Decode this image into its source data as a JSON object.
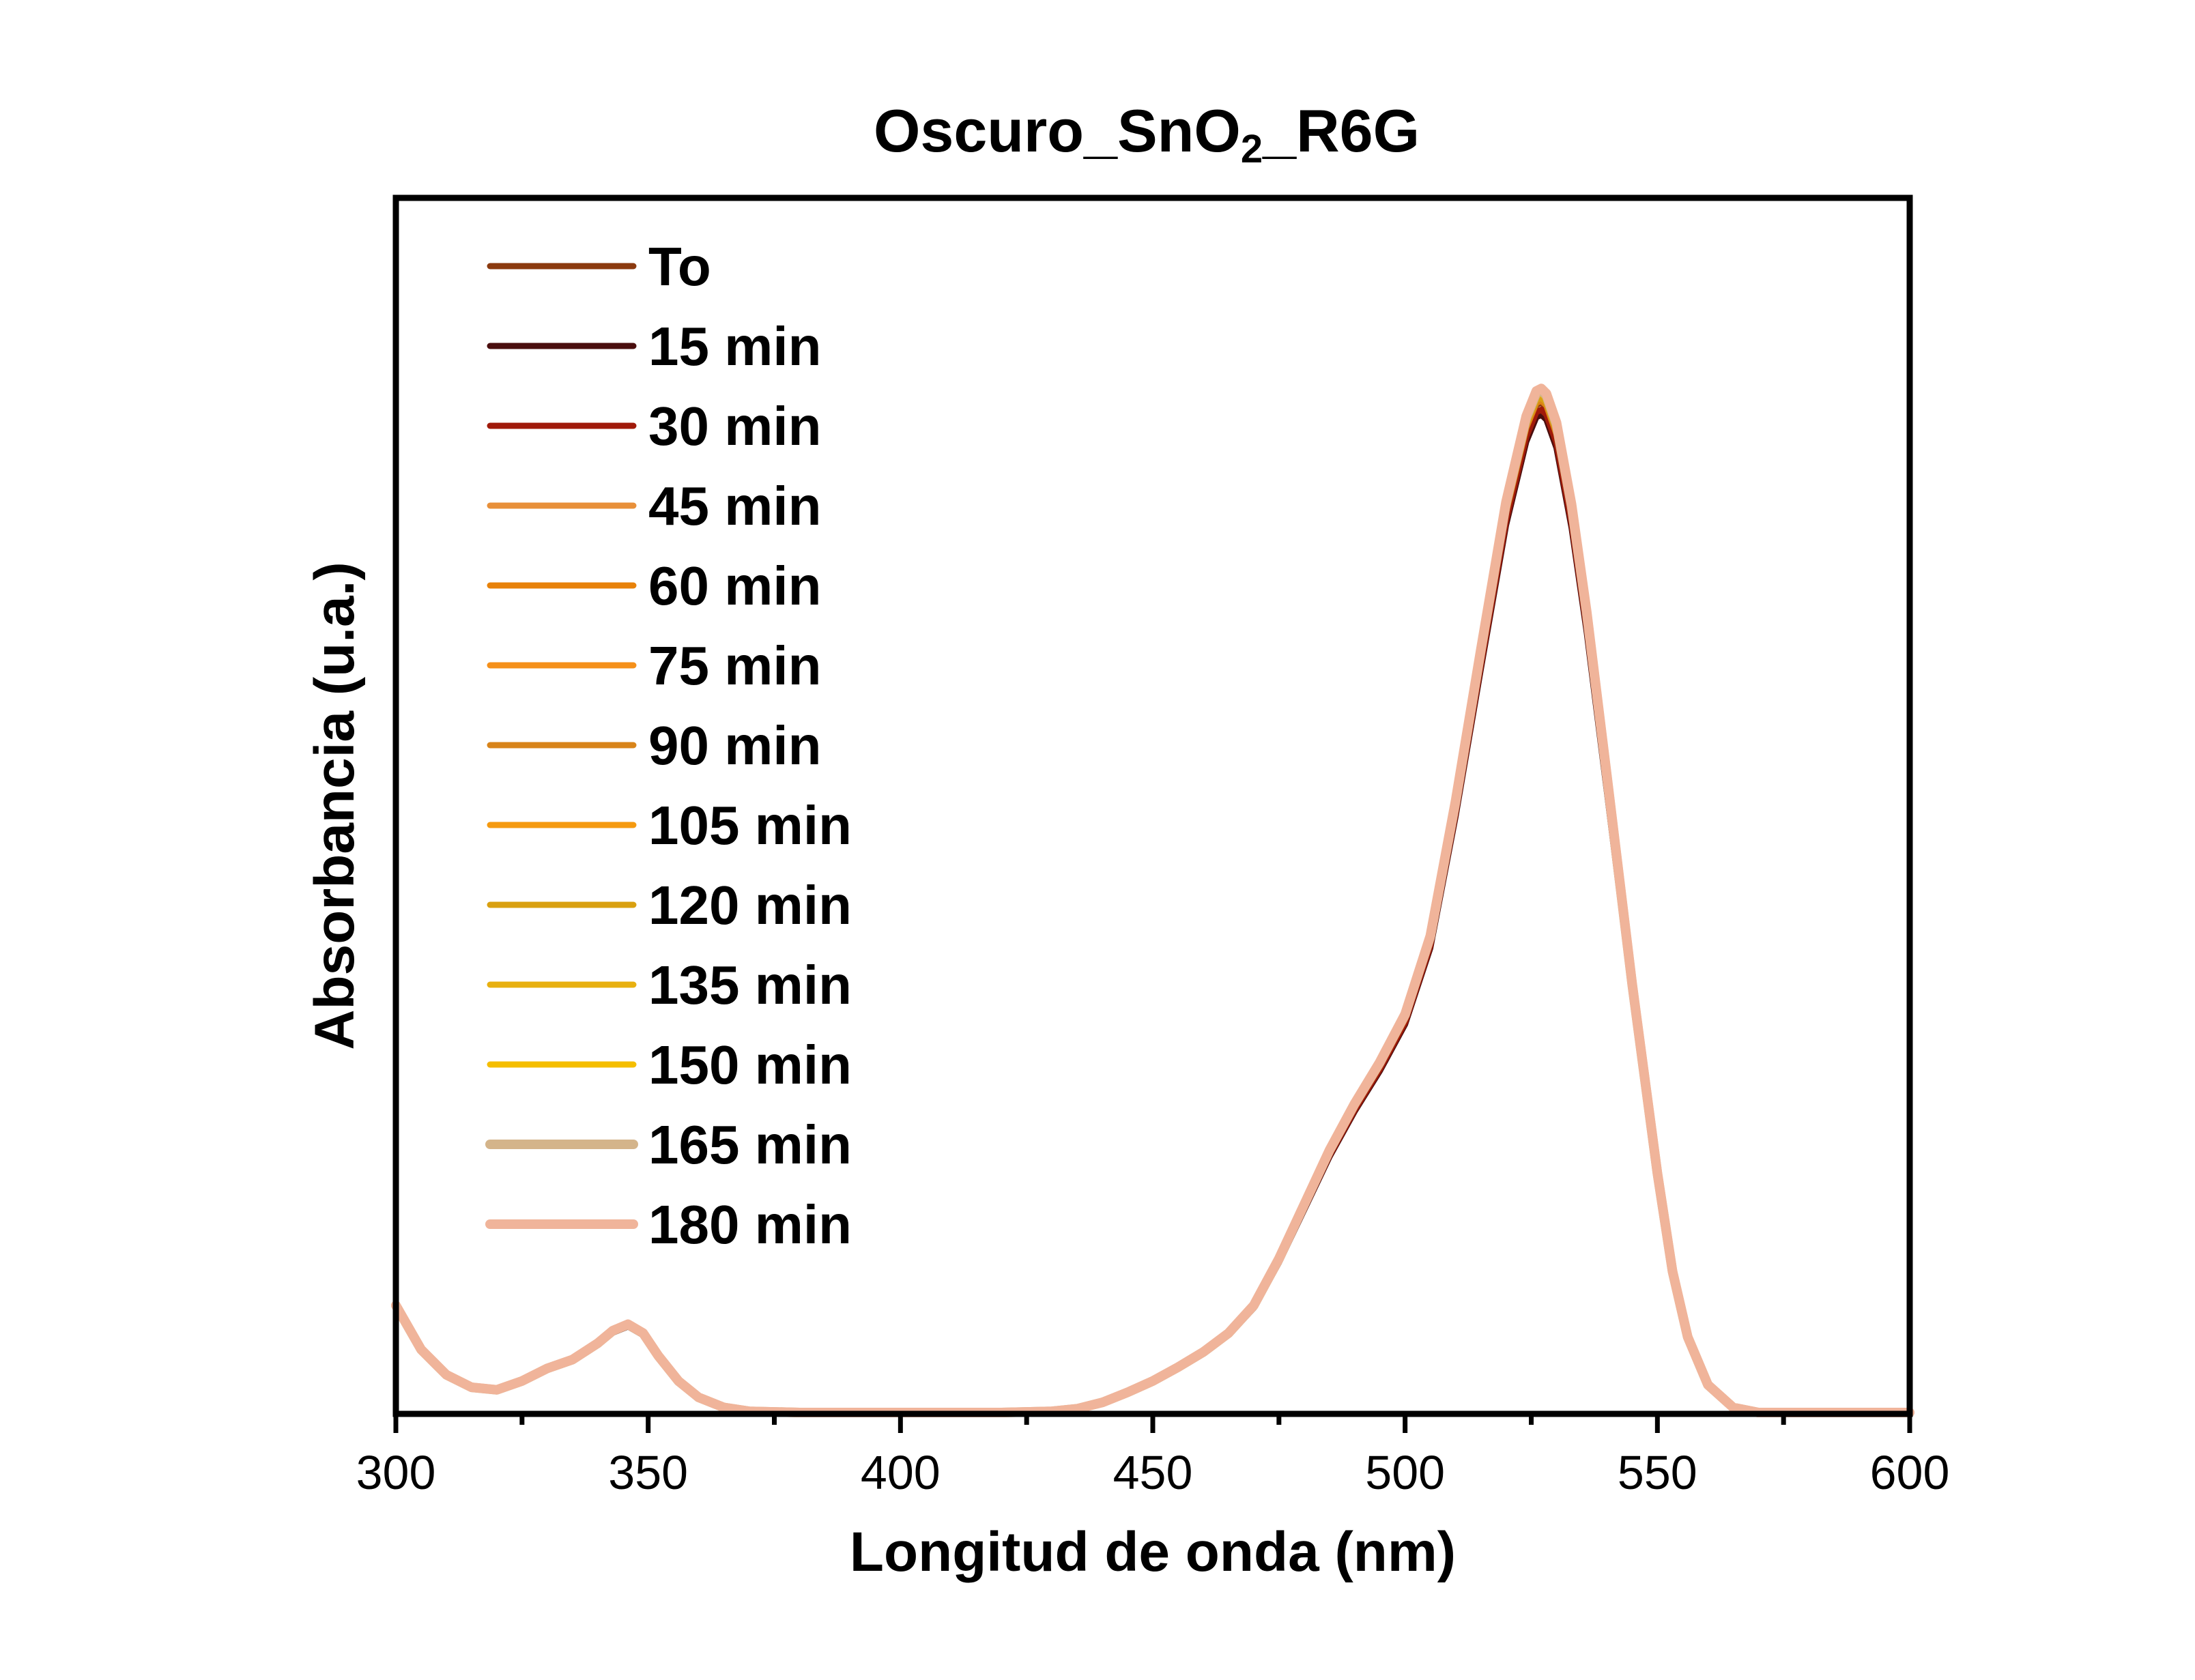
{
  "chart_data": {
    "type": "line",
    "title": {
      "parts": [
        {
          "text": "Oscuro_SnO",
          "sub": false
        },
        {
          "text": "2",
          "sub": true
        },
        {
          "text": "_R6G",
          "sub": false
        }
      ]
    },
    "xlabel": "Longitud de onda (nm)",
    "ylabel": "Absorbancia (u.a.)",
    "xlim": [
      300,
      600
    ],
    "ylim": [
      0,
      1.0
    ],
    "y_ticks_labeled": false,
    "x_ticks": [
      "300",
      "350",
      "400",
      "450",
      "500",
      "550",
      "600"
    ],
    "x_minor_step": 25,
    "grid": false,
    "legend_position": "top-left",
    "base_profile": {
      "x": [
        300,
        305,
        310,
        315,
        320,
        325,
        330,
        335,
        340,
        343,
        346,
        349,
        352,
        356,
        360,
        365,
        370,
        380,
        400,
        420,
        430,
        435,
        440,
        445,
        450,
        455,
        460,
        465,
        470,
        475,
        480,
        485,
        490,
        495,
        500,
        505,
        510,
        515,
        520,
        524,
        526,
        527,
        528,
        530,
        533,
        536,
        540,
        545,
        550,
        553,
        556,
        560,
        565,
        570,
        580,
        600
      ],
      "y": [
        0.085,
        0.05,
        0.03,
        0.02,
        0.018,
        0.025,
        0.035,
        0.042,
        0.055,
        0.065,
        0.07,
        0.063,
        0.045,
        0.025,
        0.012,
        0.004,
        0.001,
        0.0,
        0.0,
        0.0,
        0.001,
        0.003,
        0.008,
        0.016,
        0.025,
        0.036,
        0.048,
        0.063,
        0.085,
        0.122,
        0.165,
        0.208,
        0.245,
        0.278,
        0.316,
        0.378,
        0.485,
        0.605,
        0.722,
        0.79,
        0.81,
        0.812,
        0.808,
        0.785,
        0.72,
        0.635,
        0.505,
        0.34,
        0.19,
        0.112,
        0.06,
        0.022,
        0.004,
        0.0,
        0.0,
        0.0
      ]
    },
    "series": [
      {
        "name": "To",
        "color": "#8B3A0F",
        "scale": 1.0
      },
      {
        "name": "15 min",
        "color": "#4A0E0E",
        "scale": 0.988
      },
      {
        "name": "30 min",
        "color": "#A01A0A",
        "scale": 0.993
      },
      {
        "name": "45 min",
        "color": "#E8903A",
        "scale": 1.004
      },
      {
        "name": "60 min",
        "color": "#E8820A",
        "scale": 1.002
      },
      {
        "name": "75 min",
        "color": "#F5901A",
        "scale": 1.006
      },
      {
        "name": "90 min",
        "color": "#D8841A",
        "scale": 1.003
      },
      {
        "name": "105 min",
        "color": "#F59A10",
        "scale": 1.008
      },
      {
        "name": "120 min",
        "color": "#D9A010",
        "scale": 1.005
      },
      {
        "name": "135 min",
        "color": "#E8B010",
        "scale": 1.009
      },
      {
        "name": "150 min",
        "color": "#F5BE00",
        "scale": 1.01
      },
      {
        "name": "165 min",
        "color": "#D4B48A",
        "scale": 1.012
      },
      {
        "name": "180 min",
        "color": "#F0B49A",
        "scale": 1.014
      }
    ]
  }
}
